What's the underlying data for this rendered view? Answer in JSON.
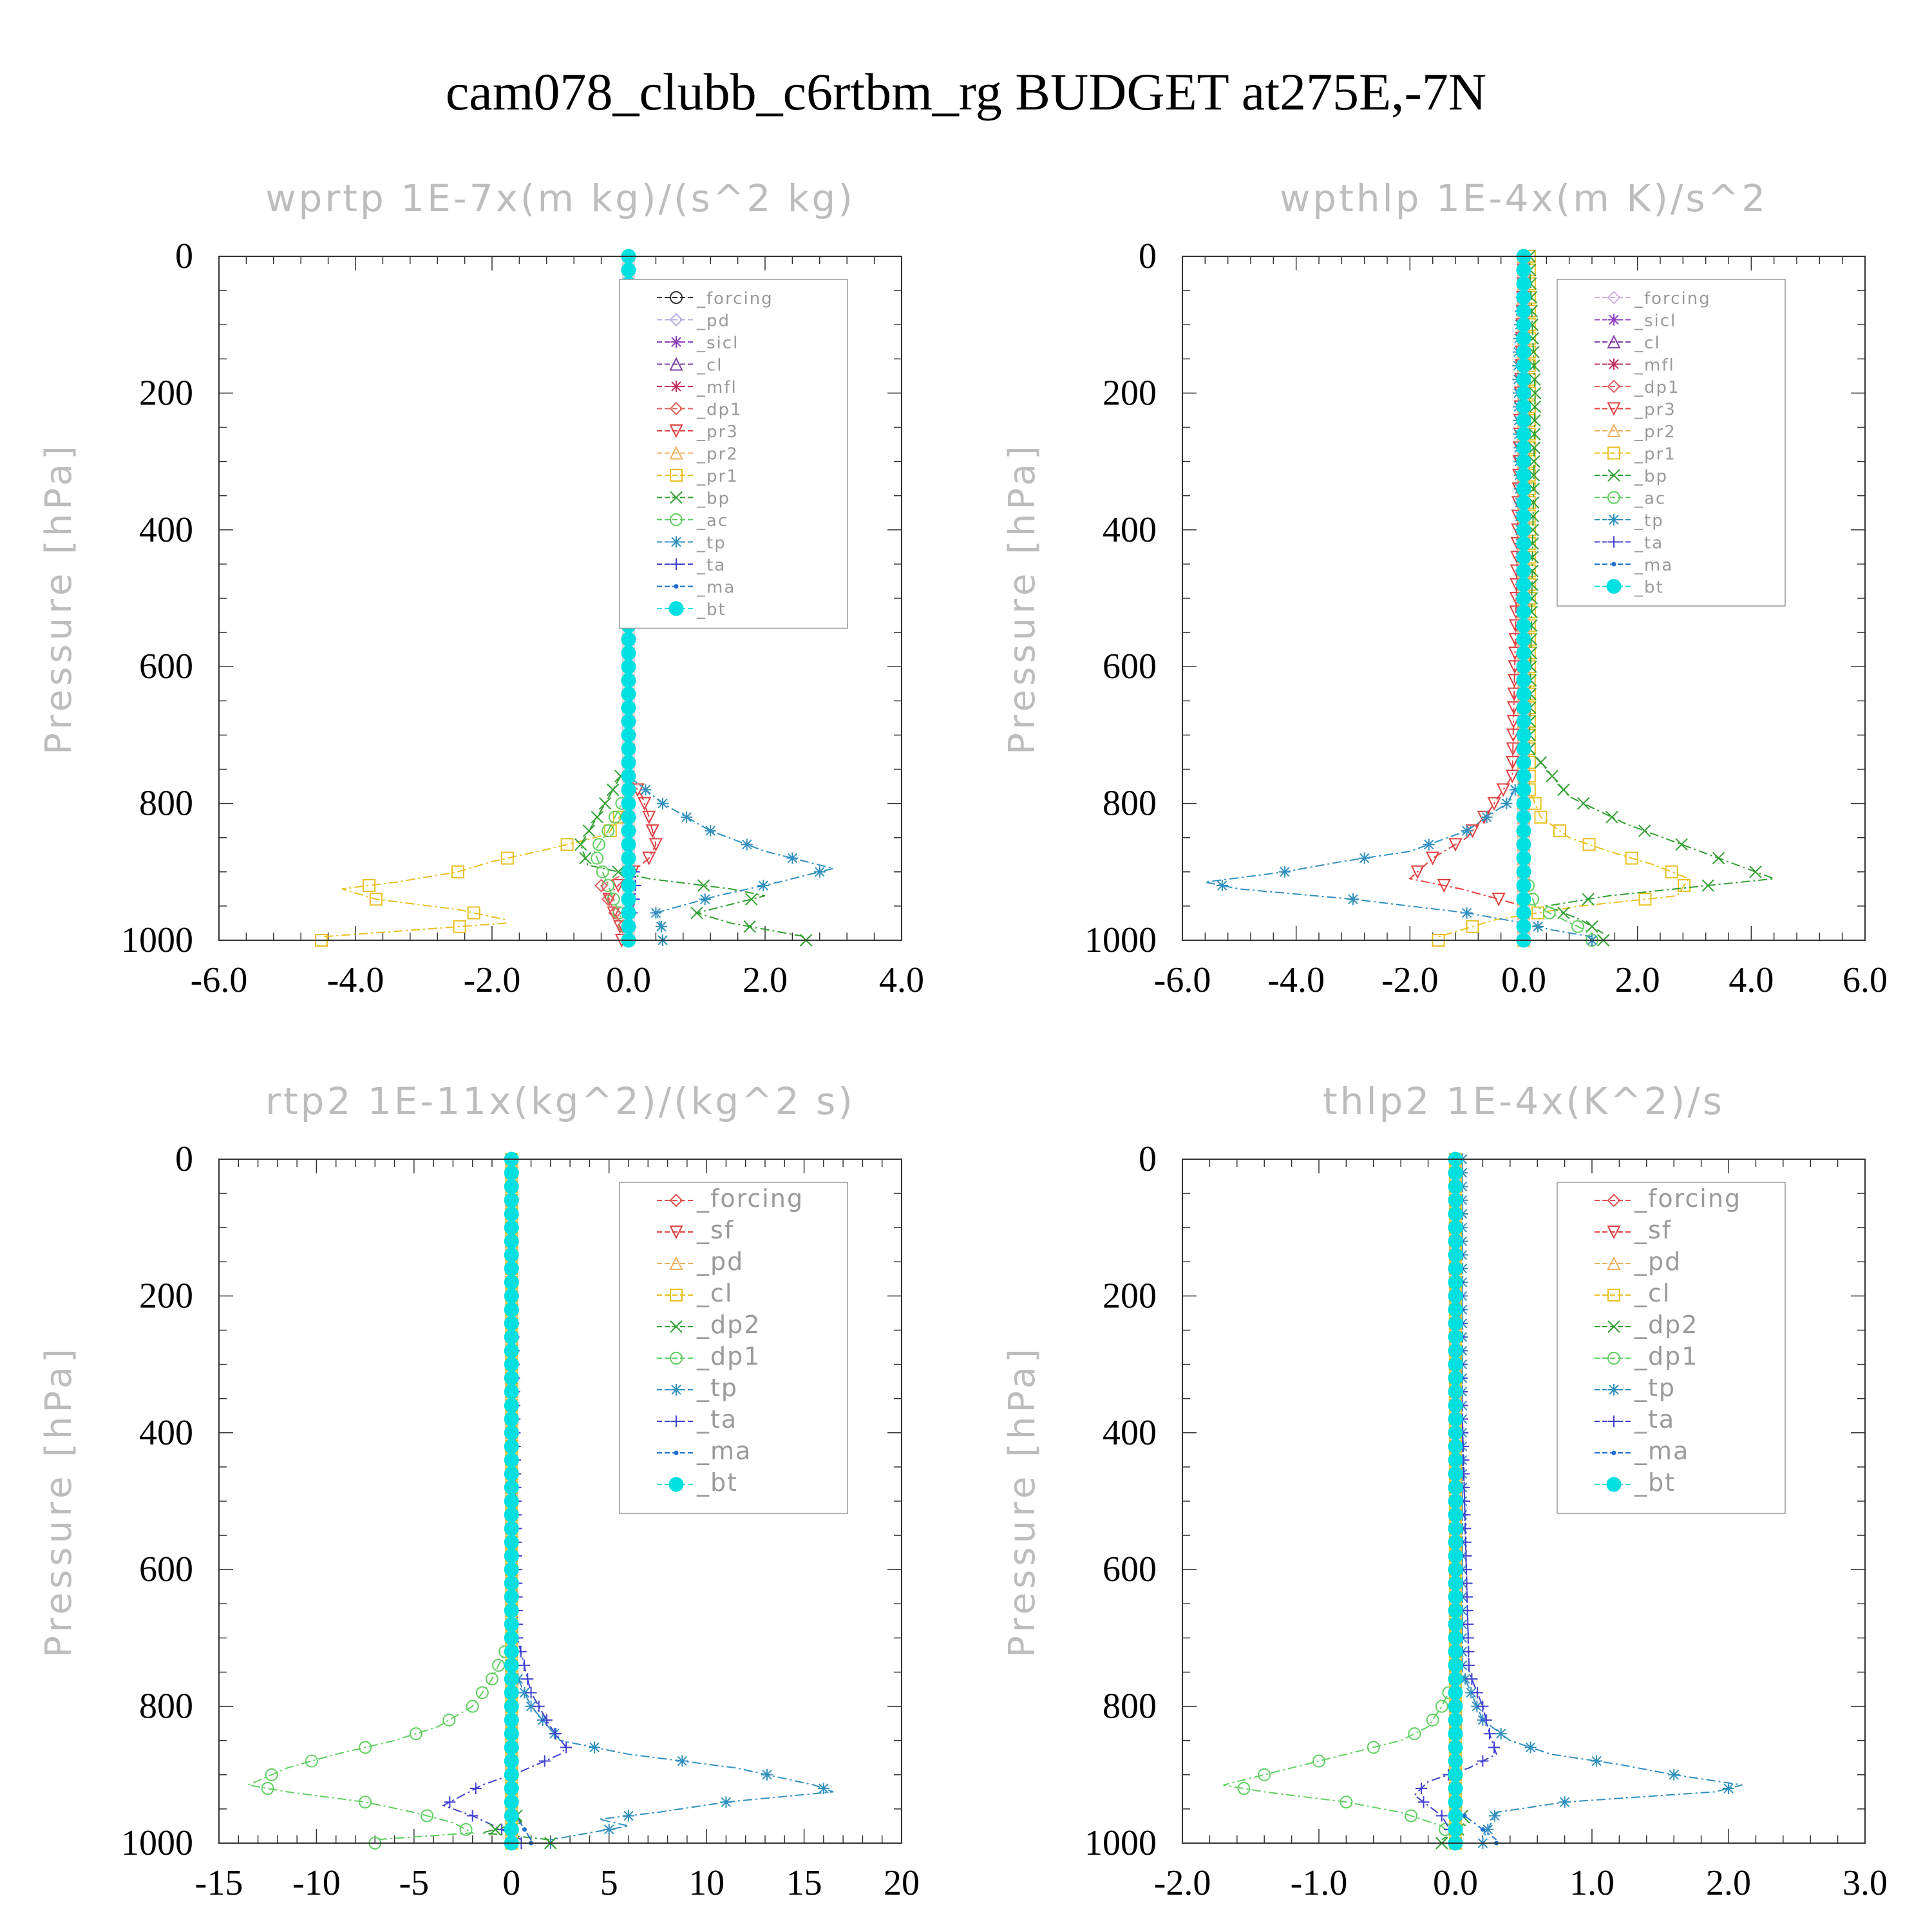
{
  "title": "cam078_clubb_c6rtbm_rg  BUDGET at275E,-7N",
  "chart_data": [
    {
      "type": "line",
      "title": "wprtp  1E-7x(m kg)/(s^2 kg)",
      "ylabel": "Pressure [hPa]",
      "xlim": [
        -6,
        4
      ],
      "ylim": [
        0,
        1000
      ],
      "xticks": [
        "-6.0",
        "-4.0",
        "-2.0",
        "0.0",
        "2.0",
        "4.0"
      ],
      "yticks": [
        "0",
        "200",
        "400",
        "600",
        "800",
        "1000"
      ],
      "legend": [
        "_forcing",
        "_pd",
        "_sicl",
        "_cl",
        "_mfl",
        "_dp1",
        "_pr3",
        "_pr2",
        "_pr1",
        "_bp",
        "_ac",
        "_tp",
        "_ta",
        "_ma",
        "_bt"
      ],
      "series": [
        {
          "name": "_pr1",
          "color": "#e8c020",
          "marker": "square",
          "x": [
            0,
            0,
            0,
            -0.3,
            -1.1,
            -2.0,
            -2.5,
            -3.4,
            -4.2,
            -3.7,
            -2.5,
            -1.8,
            -1.8,
            -4.5
          ],
          "y": [
            0,
            700,
            800,
            845,
            865,
            885,
            900,
            915,
            925,
            940,
            955,
            970,
            975,
            995
          ]
        },
        {
          "name": "_pr2",
          "color": "#f0b060",
          "marker": "triangle",
          "x": [
            0,
            0,
            0,
            0,
            0
          ],
          "y": [
            0,
            600,
            800,
            950,
            1000
          ]
        },
        {
          "name": "_pr3",
          "color": "#e04040",
          "marker": "triangledown",
          "x": [
            0,
            0,
            0.2,
            0.3,
            0.4,
            0.3,
            0,
            -0.3,
            -0.2,
            -0.1
          ],
          "y": [
            0,
            760,
            790,
            820,
            860,
            880,
            905,
            935,
            965,
            985
          ]
        },
        {
          "name": "_bp",
          "color": "#30a030",
          "marker": "x",
          "x": [
            0,
            0,
            -0.4,
            -0.7,
            -0.6,
            0.3,
            1.5,
            2.0,
            1.0,
            1.5,
            2.6
          ],
          "y": [
            0,
            740,
            810,
            860,
            890,
            910,
            925,
            935,
            960,
            975,
            995
          ]
        },
        {
          "name": "_ac",
          "color": "#60d060",
          "marker": "circle",
          "x": [
            0,
            0,
            -0.3,
            -0.5,
            0
          ],
          "y": [
            0,
            780,
            840,
            870,
            995
          ]
        },
        {
          "name": "_tp",
          "color": "#3090c0",
          "marker": "star",
          "x": [
            0,
            0,
            0.5,
            1.2,
            2.0,
            3.0,
            2.2,
            1.3,
            0.4,
            0.5
          ],
          "y": [
            0,
            760,
            800,
            840,
            870,
            895,
            915,
            935,
            960,
            985
          ]
        },
        {
          "name": "_ta",
          "color": "#4040d0",
          "marker": "plus",
          "x": [
            0,
            0,
            0,
            0,
            0.1,
            0.1,
            0
          ],
          "y": [
            0,
            760,
            840,
            880,
            905,
            930,
            990
          ]
        },
        {
          "name": "_ma",
          "color": "#2070d0",
          "marker": "dot",
          "x": [
            0,
            0,
            0,
            0
          ],
          "y": [
            0,
            500,
            900,
            1000
          ]
        },
        {
          "name": "_forcing",
          "color": "#303030",
          "marker": "circle",
          "x": [
            0,
            0
          ],
          "y": [
            0,
            1000
          ]
        },
        {
          "name": "_pd",
          "color": "#b0b0e0",
          "marker": "diamond",
          "x": [
            0,
            0
          ],
          "y": [
            0,
            1000
          ]
        },
        {
          "name": "_sicl",
          "color": "#9040c0",
          "marker": "star",
          "x": [
            0,
            0
          ],
          "y": [
            0,
            1000
          ]
        },
        {
          "name": "_cl",
          "color": "#8040a0",
          "marker": "triangle",
          "x": [
            0,
            0
          ],
          "y": [
            0,
            1000
          ]
        },
        {
          "name": "_mfl",
          "color": "#c03060",
          "marker": "star",
          "x": [
            0,
            0
          ],
          "y": [
            0,
            1000
          ]
        },
        {
          "name": "_dp1",
          "color": "#e06060",
          "marker": "diamond",
          "x": [
            0,
            0,
            -0.4,
            -0.2,
            0
          ],
          "y": [
            0,
            900,
            920,
            960,
            995
          ]
        },
        {
          "name": "_bt",
          "color": "#00e0e0",
          "marker": "filledcircle",
          "x": [
            0,
            0
          ],
          "y": [
            0,
            1000
          ]
        }
      ]
    },
    {
      "type": "line",
      "title": "wpthlp  1E-4x(m K)/s^2",
      "ylabel": "Pressure [hPa]",
      "xlim": [
        -6,
        6
      ],
      "ylim": [
        0,
        1000
      ],
      "xticks": [
        "-6.0",
        "-4.0",
        "-2.0",
        "0.0",
        "2.0",
        "4.0",
        "6.0"
      ],
      "yticks": [
        "0",
        "200",
        "400",
        "600",
        "800",
        "1000"
      ],
      "legend": [
        "_forcing",
        "_sicl",
        "_cl",
        "_mfl",
        "_dp1",
        "_pr3",
        "_pr2",
        "_pr1",
        "_bp",
        "_ac",
        "_tp",
        "_ta",
        "_ma",
        "_bt"
      ],
      "series": [
        {
          "name": "_pr1",
          "color": "#e8c020",
          "marker": "square",
          "x": [
            0.1,
            0.1,
            0.1,
            0.3,
            0.8,
            1.5,
            2.3,
            2.9,
            2.7,
            1.0,
            -0.5,
            -1.5
          ],
          "y": [
            0,
            300,
            780,
            820,
            850,
            870,
            890,
            910,
            935,
            950,
            970,
            995
          ]
        },
        {
          "name": "_pr3",
          "color": "#e04040",
          "marker": "triangledown",
          "x": [
            0,
            -0.2,
            -0.6,
            -1.0,
            -1.6,
            -2.0,
            -1.1,
            0,
            0
          ],
          "y": [
            0,
            760,
            810,
            850,
            880,
            910,
            925,
            950,
            995
          ]
        },
        {
          "name": "_bp",
          "color": "#30a030",
          "marker": "x",
          "x": [
            0.1,
            0.2,
            0.1,
            0.8,
            1.8,
            3.1,
            4.4,
            1.5,
            0.4,
            1.0,
            1.4
          ],
          "y": [
            0,
            200,
            720,
            790,
            830,
            870,
            910,
            935,
            950,
            970,
            990
          ]
        },
        {
          "name": "_ac",
          "color": "#60d060",
          "marker": "circle",
          "x": [
            0,
            0,
            0.2,
            1.2
          ],
          "y": [
            0,
            900,
            950,
            990
          ]
        },
        {
          "name": "_tp",
          "color": "#3090c0",
          "marker": "star",
          "x": [
            0,
            -0.1,
            0,
            -0.3,
            -1.0,
            -2.0,
            -3.2,
            -4.2,
            -5.6,
            -5.0,
            -3.0,
            -1.0,
            0,
            0.5,
            1.2
          ],
          "y": [
            0,
            150,
            760,
            800,
            840,
            870,
            885,
            900,
            915,
            925,
            940,
            960,
            975,
            985,
            995
          ]
        },
        {
          "name": "_ta",
          "color": "#4040d0",
          "marker": "plus",
          "x": [
            0,
            0,
            0
          ],
          "y": [
            0,
            900,
            1000
          ]
        },
        {
          "name": "_ma",
          "color": "#2070d0",
          "marker": "dot",
          "x": [
            0,
            0,
            0
          ],
          "y": [
            0,
            600,
            1000
          ]
        },
        {
          "name": "_forcing",
          "color": "#d0b0e0",
          "marker": "diamond",
          "x": [
            0,
            0
          ],
          "y": [
            0,
            1000
          ]
        },
        {
          "name": "_sicl",
          "color": "#9040c0",
          "marker": "star",
          "x": [
            0,
            0
          ],
          "y": [
            0,
            1000
          ]
        },
        {
          "name": "_cl",
          "color": "#8040a0",
          "marker": "triangle",
          "x": [
            0,
            0
          ],
          "y": [
            0,
            1000
          ]
        },
        {
          "name": "_mfl",
          "color": "#c03060",
          "marker": "star",
          "x": [
            0,
            0
          ],
          "y": [
            0,
            1000
          ]
        },
        {
          "name": "_dp1",
          "color": "#e06060",
          "marker": "diamond",
          "x": [
            0,
            0,
            0
          ],
          "y": [
            0,
            900,
            1000
          ]
        },
        {
          "name": "_pr2",
          "color": "#f0b060",
          "marker": "triangle",
          "x": [
            0,
            0
          ],
          "y": [
            0,
            1000
          ]
        },
        {
          "name": "_bt",
          "color": "#00e0e0",
          "marker": "filledcircle",
          "x": [
            0,
            0
          ],
          "y": [
            0,
            1000
          ]
        }
      ]
    },
    {
      "type": "line",
      "title": "rtp2  1E-11x(kg^2)/(kg^2 s)",
      "ylabel": "Pressure [hPa]",
      "xlim": [
        -15,
        20
      ],
      "ylim": [
        0,
        1000
      ],
      "xticks": [
        "-15",
        "-10",
        "-5",
        "0",
        "5",
        "10",
        "15",
        "20"
      ],
      "yticks": [
        "0",
        "200",
        "400",
        "600",
        "800",
        "1000"
      ],
      "legend": [
        "_forcing",
        "_sf",
        "_pd",
        "_cl",
        "_dp2",
        "_dp1",
        "_tp",
        "_ta",
        "_ma",
        "_bt"
      ],
      "series": [
        {
          "name": "_dp1",
          "color": "#60d060",
          "marker": "circle",
          "x": [
            0,
            0,
            -1.0,
            -2.0,
            -3.8,
            -6.0,
            -9.0,
            -11.5,
            -13.5,
            -11.5,
            -7.5,
            -5.0,
            -3.0,
            -2.0,
            -7.0
          ],
          "y": [
            0,
            700,
            760,
            800,
            830,
            850,
            870,
            890,
            915,
            925,
            940,
            955,
            970,
            985,
            995
          ]
        },
        {
          "name": "_tp",
          "color": "#3090c0",
          "marker": "star",
          "x": [
            0,
            0,
            1.0,
            2.5,
            6.0,
            11.5,
            15.5,
            16.5,
            11.0,
            7.5,
            4.5,
            6.0,
            2.0
          ],
          "y": [
            0,
            740,
            800,
            850,
            870,
            890,
            915,
            925,
            940,
            955,
            965,
            975,
            995
          ]
        },
        {
          "name": "_ta",
          "color": "#4040d0",
          "marker": "plus",
          "x": [
            0,
            0.3,
            1.0,
            2.0,
            2.8,
            2.5,
            0.5,
            -1.5,
            -2.5,
            -3.5,
            -2.0,
            -0.5,
            0.5
          ],
          "y": [
            0,
            700,
            780,
            830,
            860,
            870,
            895,
            915,
            930,
            945,
            960,
            980,
            995
          ]
        },
        {
          "name": "_dp2",
          "color": "#30a030",
          "marker": "x",
          "x": [
            0,
            0,
            0.5,
            -1.5,
            2.0
          ],
          "y": [
            0,
            950,
            970,
            985,
            995
          ]
        },
        {
          "name": "_ma",
          "color": "#2070d0",
          "marker": "dot",
          "x": [
            0,
            0,
            1.0
          ],
          "y": [
            0,
            950,
            995
          ]
        },
        {
          "name": "_forcing",
          "color": "#e05050",
          "marker": "diamond",
          "x": [
            0,
            0
          ],
          "y": [
            0,
            1000
          ]
        },
        {
          "name": "_sf",
          "color": "#e04040",
          "marker": "triangledown",
          "x": [
            0,
            0
          ],
          "y": [
            0,
            1000
          ]
        },
        {
          "name": "_pd",
          "color": "#f0b060",
          "marker": "triangle",
          "x": [
            0,
            0
          ],
          "y": [
            0,
            1000
          ]
        },
        {
          "name": "_cl",
          "color": "#e8c020",
          "marker": "square",
          "x": [
            0,
            0
          ],
          "y": [
            0,
            1000
          ]
        },
        {
          "name": "_bt",
          "color": "#00e0e0",
          "marker": "filledcircle",
          "x": [
            0,
            0
          ],
          "y": [
            0,
            1000
          ]
        }
      ]
    },
    {
      "type": "line",
      "title": "thlp2  1E-4x(K^2)/s",
      "ylabel": "Pressure [hPa]",
      "xlim": [
        -2,
        3
      ],
      "ylim": [
        0,
        1000
      ],
      "xticks": [
        "-2.0",
        "-1.0",
        "0.0",
        "1.0",
        "2.0",
        "3.0"
      ],
      "yticks": [
        "0",
        "200",
        "400",
        "600",
        "800",
        "1000"
      ],
      "legend": [
        "_forcing",
        "_sf",
        "_pd",
        "_cl",
        "_dp2",
        "_dp1",
        "_tp",
        "_ta",
        "_ma",
        "_bt"
      ],
      "series": [
        {
          "name": "_dp1",
          "color": "#60d060",
          "marker": "circle",
          "x": [
            0,
            0,
            -0.1,
            -0.2,
            -0.4,
            -0.8,
            -1.2,
            -1.5,
            -1.7,
            -1.4,
            -0.8,
            -0.4,
            -0.1,
            0
          ],
          "y": [
            0,
            760,
            800,
            830,
            850,
            870,
            890,
            905,
            915,
            925,
            940,
            955,
            975,
            995
          ]
        },
        {
          "name": "_tp",
          "color": "#3090c0",
          "marker": "star",
          "x": [
            0.05,
            0.05,
            0.2,
            0.4,
            0.7,
            1.2,
            1.6,
            2.1,
            1.9,
            0.8,
            0.3,
            0.2
          ],
          "y": [
            0,
            750,
            820,
            850,
            870,
            885,
            900,
            915,
            925,
            940,
            955,
            995
          ]
        },
        {
          "name": "_ta",
          "color": "#4040d0",
          "marker": "plus",
          "x": [
            0,
            0.1,
            0.2,
            0.25,
            0.3,
            0.1,
            -0.2,
            -0.3,
            -0.1,
            0
          ],
          "y": [
            0,
            750,
            800,
            840,
            870,
            890,
            910,
            930,
            960,
            995
          ]
        },
        {
          "name": "_dp2",
          "color": "#30a030",
          "marker": "x",
          "x": [
            0,
            0,
            0.1,
            -0.1
          ],
          "y": [
            0,
            950,
            970,
            995
          ]
        },
        {
          "name": "_ma",
          "color": "#2070d0",
          "marker": "dot",
          "x": [
            0,
            0,
            0.3
          ],
          "y": [
            0,
            950,
            995
          ]
        },
        {
          "name": "_forcing",
          "color": "#e05050",
          "marker": "diamond",
          "x": [
            0,
            0
          ],
          "y": [
            0,
            1000
          ]
        },
        {
          "name": "_sf",
          "color": "#e04040",
          "marker": "triangledown",
          "x": [
            0,
            0
          ],
          "y": [
            0,
            1000
          ]
        },
        {
          "name": "_pd",
          "color": "#f0b060",
          "marker": "triangle",
          "x": [
            0,
            0
          ],
          "y": [
            0,
            1000
          ]
        },
        {
          "name": "_cl",
          "color": "#e8c020",
          "marker": "square",
          "x": [
            0,
            0
          ],
          "y": [
            0,
            1000
          ]
        },
        {
          "name": "_bt",
          "color": "#00e0e0",
          "marker": "filledcircle",
          "x": [
            0,
            0
          ],
          "y": [
            0,
            1000
          ]
        }
      ]
    }
  ]
}
